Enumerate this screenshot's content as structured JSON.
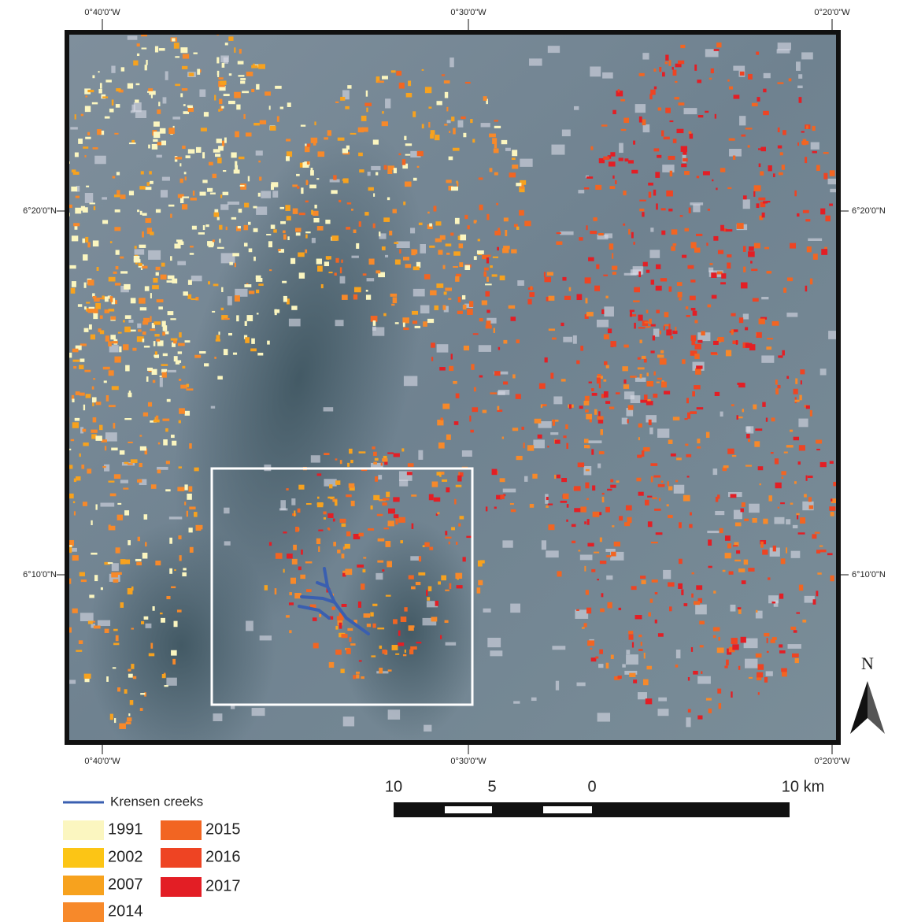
{
  "map": {
    "lon_labels": [
      "0°40'0\"W",
      "0°30'0\"W",
      "0°20'0\"W"
    ],
    "lat_labels": [
      "6°20'0\"N",
      "6°10'0\"N"
    ],
    "north": "N",
    "legend": {
      "line": {
        "label": "Krensen creeks",
        "color": "#3a5fb0"
      },
      "years": [
        {
          "label": "1991",
          "color": "#fbf6c0"
        },
        {
          "label": "2002",
          "color": "#fcc515"
        },
        {
          "label": "2007",
          "color": "#f7a21e"
        },
        {
          "label": "2014",
          "color": "#f7892a"
        },
        {
          "label": "2015",
          "color": "#f26522"
        },
        {
          "label": "2016",
          "color": "#ee4423"
        },
        {
          "label": "2017",
          "color": "#e31e25"
        }
      ]
    },
    "scale_bar": {
      "labels": [
        "10",
        "5",
        "0",
        "10 km"
      ]
    }
  }
}
